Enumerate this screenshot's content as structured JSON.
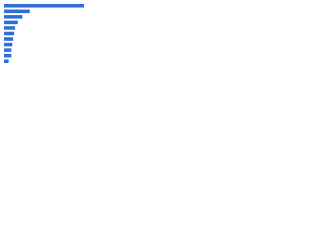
{
  "chart_data": {
    "type": "hbar",
    "categories": [
      null,
      null,
      null,
      null,
      null,
      null,
      null,
      null,
      null,
      null,
      null
    ],
    "values": [
      87,
      28,
      20,
      15,
      12,
      11,
      10,
      9,
      8,
      8,
      5
    ],
    "color": "#2f6fd6",
    "xlim": [
      0,
      100
    ]
  }
}
